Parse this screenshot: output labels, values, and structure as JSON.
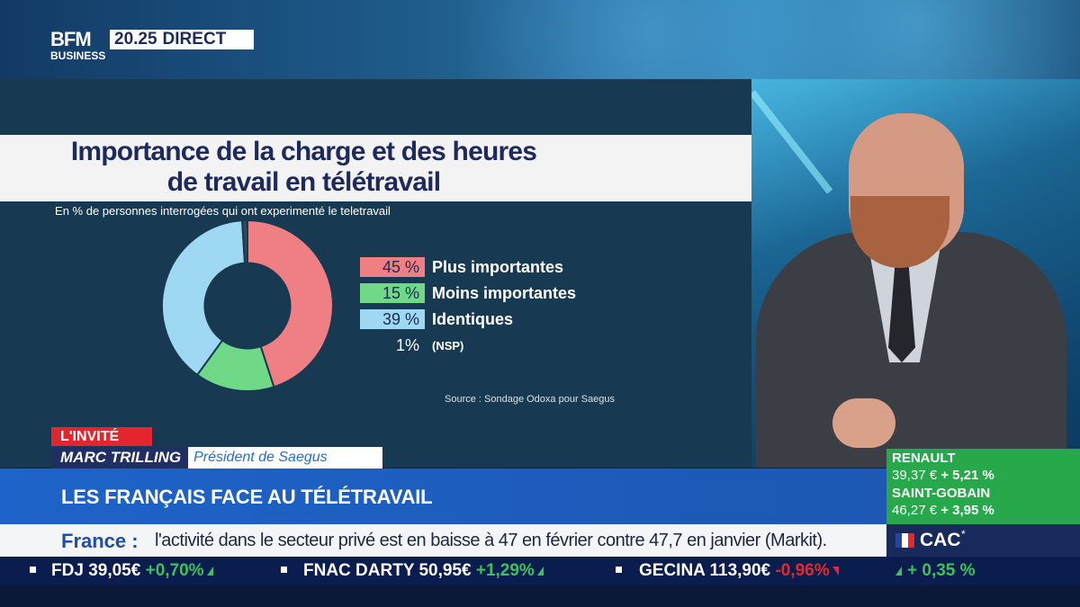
{
  "channel": {
    "logo_line1": "BFM",
    "logo_line2": "BUSINESS",
    "time": "20.25",
    "live_label": "DIRECT"
  },
  "infographic": {
    "title_line1": "Importance de la charge et des heures",
    "title_line2": "de travail en télétravail",
    "subtitle": "En % de personnes interrogées qui ont experimenté le teletravail",
    "source": "Source : Sondage Odoxa pour Saegus"
  },
  "chart_data": {
    "type": "pie",
    "title": "Importance de la charge et des heures de travail en télétravail",
    "categories": [
      "Plus importantes",
      "Moins importantes",
      "Identiques",
      "(NSP)"
    ],
    "values": [
      45,
      15,
      39,
      1
    ],
    "labels": [
      "45 %",
      "15 %",
      "39 %",
      "1%"
    ],
    "colors": [
      "#f07f84",
      "#6fd987",
      "#9fd8f2",
      "#2a4a60"
    ],
    "hole": 0.5,
    "legend": "right"
  },
  "lower_third": {
    "tag": "L'INVITÉ",
    "guest_name": "MARC TRILLING",
    "guest_role": "Président de Saegus",
    "headline": "LES FRANÇAIS FACE AU TÉLÉTRAVAIL"
  },
  "stocks_panel": [
    {
      "name": "RENAULT",
      "price": "39,37 €",
      "change": "+ 5,21 %"
    },
    {
      "name": "SAINT-GOBAIN",
      "price": "46,27 €",
      "change": "+ 3,95 %"
    }
  ],
  "news": {
    "label": "France :",
    "text": "l'activité dans le secteur privé est en baisse à 47 en février contre 47,7 en janvier (Markit)."
  },
  "index": {
    "name": "CAC",
    "star": "*",
    "change": "+ 0,35 %",
    "flag_colors": [
      "#2445a8",
      "#ffffff",
      "#e5282c"
    ]
  },
  "ticker": [
    {
      "name": "FDJ",
      "price": "39,05€",
      "change": "+0,70%",
      "direction": "up"
    },
    {
      "name": "FNAC DARTY",
      "price": "50,95€",
      "change": "+1,29%",
      "direction": "up"
    },
    {
      "name": "GECINA",
      "price": "113,90€",
      "change": "-0,96%",
      "direction": "down"
    }
  ]
}
